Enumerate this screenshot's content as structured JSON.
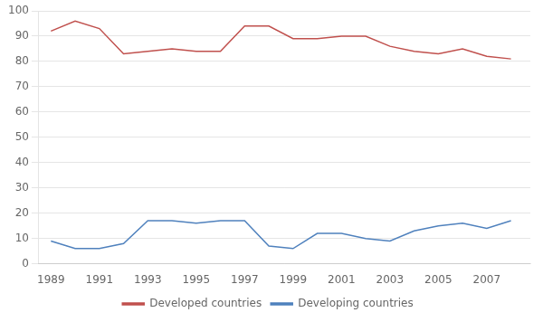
{
  "chart_data": {
    "type": "line",
    "x": [
      1989,
      1990,
      1991,
      1992,
      1993,
      1994,
      1995,
      1996,
      1997,
      1998,
      1999,
      2000,
      2001,
      2002,
      2003,
      2004,
      2005,
      2006,
      2007,
      2008
    ],
    "series": [
      {
        "name": "Developed countries",
        "color": "#c0504d",
        "values": [
          92,
          96,
          93,
          83,
          84,
          85,
          84,
          84,
          94,
          94,
          89,
          89,
          90,
          90,
          86,
          84,
          83,
          85,
          82,
          81
        ]
      },
      {
        "name": "Developing countries",
        "color": "#4f81bd",
        "values": [
          9,
          6,
          6,
          8,
          17,
          17,
          16,
          17,
          17,
          7,
          6,
          12,
          12,
          10,
          9,
          13,
          15,
          16,
          14,
          17
        ]
      }
    ],
    "xlim": [
      1988.5,
      2008.8
    ],
    "xticks": [
      1989,
      1991,
      1993,
      1995,
      1997,
      1999,
      2001,
      2003,
      2005,
      2007
    ],
    "ylim": [
      0,
      100
    ],
    "yticks": [
      0,
      10,
      20,
      30,
      40,
      50,
      60,
      70,
      80,
      90,
      100
    ],
    "grid": "y",
    "legend": "bottom"
  }
}
